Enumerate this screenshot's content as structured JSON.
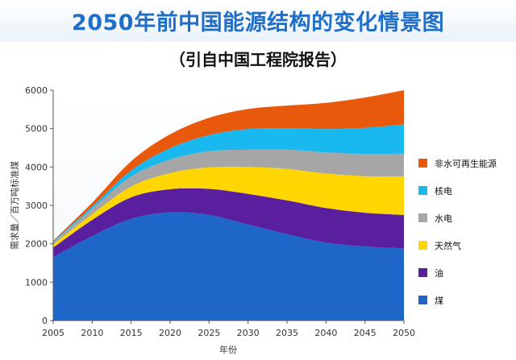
{
  "chart_data": {
    "type": "area",
    "title": "2050年前中国能源结构的变化情景图",
    "subtitle": "（引自中国工程院报告）",
    "xlabel": "年份",
    "ylabel": "需求量／百万吨标准煤",
    "x": [
      2005,
      2010,
      2015,
      2020,
      2025,
      2030,
      2035,
      2040,
      2045,
      2050
    ],
    "xlim": [
      2005,
      2050
    ],
    "ylim": [
      0,
      6000
    ],
    "yticks": [
      0,
      1000,
      2000,
      3000,
      4000,
      5000,
      6000
    ],
    "grid": false,
    "legend_position": "right",
    "series": [
      {
        "name": "煤",
        "color": "#1f66c9",
        "values": [
          1650,
          2200,
          2650,
          2820,
          2750,
          2500,
          2250,
          2030,
          1930,
          1880
        ]
      },
      {
        "name": "油",
        "color": "#5a1f9e",
        "values": [
          250,
          420,
          560,
          600,
          680,
          800,
          880,
          900,
          880,
          870
        ]
      },
      {
        "name": "天然气",
        "color": "#ffd600",
        "values": [
          80,
          150,
          280,
          420,
          560,
          700,
          820,
          900,
          950,
          1000
        ]
      },
      {
        "name": "水电",
        "color": "#a6a6a6",
        "values": [
          60,
          140,
          260,
          350,
          420,
          450,
          500,
          550,
          580,
          600
        ]
      },
      {
        "name": "核电",
        "color": "#19b8ef",
        "values": [
          20,
          60,
          160,
          300,
          420,
          540,
          560,
          610,
          680,
          760
        ]
      },
      {
        "name": "非水可再生能源",
        "color": "#e9590c",
        "values": [
          20,
          100,
          240,
          360,
          450,
          520,
          590,
          680,
          790,
          890
        ]
      }
    ]
  }
}
